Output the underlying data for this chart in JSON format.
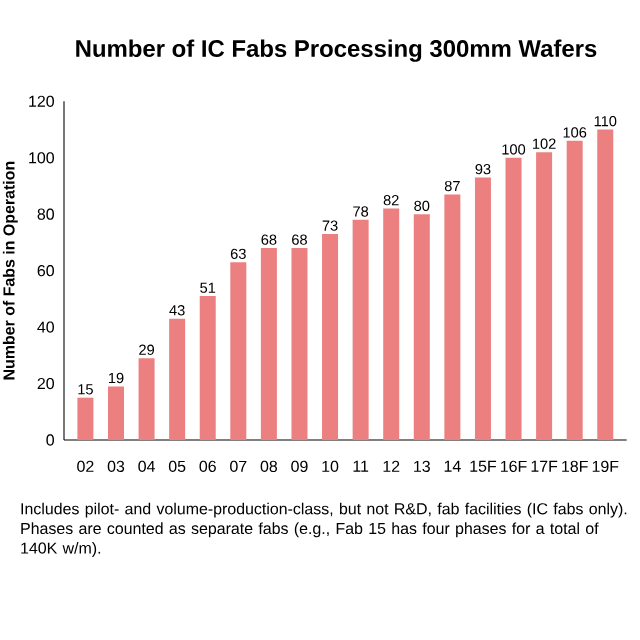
{
  "chart_data": {
    "type": "bar",
    "title": "Number of IC Fabs Processing 300mm Wafers",
    "ylabel": "Number of Fabs in Operation",
    "categories": [
      "02",
      "03",
      "04",
      "05",
      "06",
      "07",
      "08",
      "09",
      "10",
      "11",
      "12",
      "13",
      "14",
      "15F",
      "16F",
      "17F",
      "18F",
      "19F"
    ],
    "values": [
      15,
      19,
      29,
      43,
      51,
      63,
      68,
      68,
      73,
      78,
      82,
      80,
      87,
      93,
      100,
      102,
      106,
      110
    ],
    "color": "#ec7f7f",
    "ylim": [
      0,
      120
    ],
    "yticks": [
      0,
      20,
      40,
      60,
      80,
      100,
      120
    ],
    "data_labels": true,
    "grid": false,
    "annotations": [
      "Includes pilot- and volume-production-class, but not R&D, fab facilities (IC fabs only).  Phases are counted as separate fabs (e.g., Fab 15 has four phases for a total of 140K w/m)."
    ]
  }
}
